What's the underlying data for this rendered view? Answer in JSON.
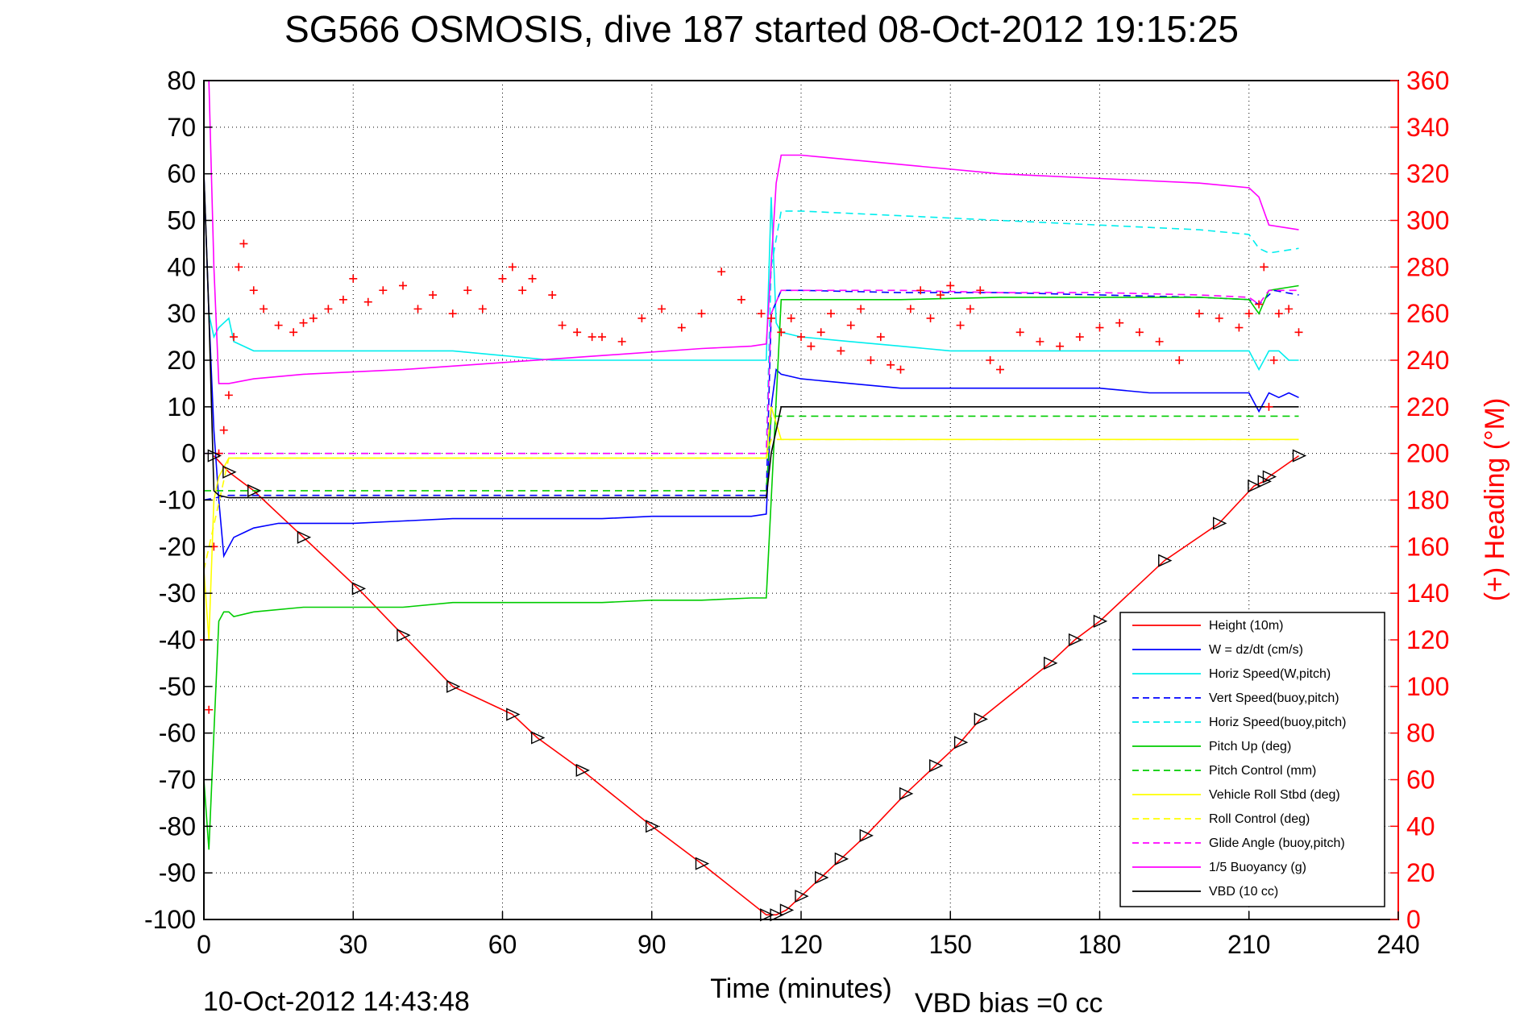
{
  "chart_data": {
    "type": "line",
    "title": "SG566 OSMOSIS, dive 187 started 08-Oct-2012 19:15:25",
    "xlabel": "Time (minutes)",
    "ylabel": "",
    "y2label": "(+) Heading (°M)",
    "footer_left": "10-Oct-2012 14:43:48",
    "footer_right": "VBD bias =0 cc",
    "xlim": [
      0,
      240
    ],
    "ylim": [
      -100,
      80
    ],
    "y2lim": [
      0,
      360
    ],
    "xticks": [
      "0",
      "30",
      "60",
      "90",
      "120",
      "150",
      "180",
      "210",
      "240"
    ],
    "xtick_values": [
      0,
      30,
      60,
      90,
      120,
      150,
      180,
      210,
      240
    ],
    "yticks": [
      "80",
      "70",
      "60",
      "50",
      "40",
      "30",
      "20",
      "10",
      "0",
      "-10",
      "-20",
      "-30",
      "-40",
      "-50",
      "-60",
      "-70",
      "-80",
      "-90",
      "-100"
    ],
    "ytick_values": [
      80,
      70,
      60,
      50,
      40,
      30,
      20,
      10,
      0,
      -10,
      -20,
      -30,
      -40,
      -50,
      -60,
      -70,
      -80,
      -90,
      -100
    ],
    "y2ticks": [
      "360",
      "340",
      "320",
      "300",
      "280",
      "260",
      "240",
      "220",
      "200",
      "180",
      "160",
      "140",
      "120",
      "100",
      "80",
      "60",
      "40",
      "20",
      "0"
    ],
    "y2tick_values": [
      360,
      340,
      320,
      300,
      280,
      260,
      240,
      220,
      200,
      180,
      160,
      140,
      120,
      100,
      80,
      60,
      40,
      20,
      0
    ],
    "grid": true,
    "legend_position": "bottom-right",
    "series": [
      {
        "name": "Height (10m)",
        "color": "#ff0000",
        "style": "solid",
        "x": [
          2,
          5,
          10,
          20,
          31,
          40,
          50,
          62,
          67,
          76,
          90,
          100,
          113,
          115,
          117,
          120,
          124,
          128,
          133,
          141,
          147,
          152,
          156,
          170,
          175,
          180,
          193,
          204,
          211,
          213,
          214,
          220
        ],
        "y": [
          -0.5,
          -4,
          -8,
          -18,
          -29,
          -39,
          -50,
          -56,
          -61,
          -68,
          -80,
          -88,
          -99,
          -99,
          -98,
          -95,
          -91,
          -87,
          -82,
          -73,
          -67,
          -62,
          -57,
          -45,
          -40,
          -36,
          -23,
          -15,
          -7,
          -6,
          -5,
          -0.5
        ]
      },
      {
        "name": "W = dz/dt (cm/s)",
        "color": "#0000ff",
        "style": "solid",
        "x": [
          0,
          1,
          2,
          3,
          4,
          5,
          6,
          8,
          10,
          15,
          20,
          30,
          40,
          50,
          60,
          70,
          80,
          90,
          100,
          110,
          113,
          114,
          115,
          116,
          120,
          130,
          140,
          150,
          160,
          170,
          180,
          190,
          200,
          210,
          212,
          214,
          216,
          218,
          220
        ],
        "y": [
          60,
          30,
          5,
          -10,
          -22,
          -20,
          -18,
          -17,
          -16,
          -15,
          -15,
          -15,
          -14.5,
          -14,
          -14,
          -14,
          -14,
          -13.5,
          -13.5,
          -13.5,
          -13,
          10,
          18,
          17,
          16,
          15,
          14,
          14,
          14,
          14,
          14,
          13,
          13,
          13,
          9,
          13,
          12,
          13,
          12
        ]
      },
      {
        "name": "Horiz Speed(W,pitch)",
        "color": "#00eeee",
        "style": "solid",
        "x": [
          1,
          2,
          3,
          4,
          5,
          6,
          8,
          10,
          15,
          20,
          30,
          40,
          50,
          60,
          70,
          80,
          90,
          100,
          110,
          113,
          114,
          115,
          116,
          120,
          130,
          140,
          150,
          160,
          170,
          180,
          190,
          200,
          210,
          212,
          214,
          216,
          218,
          220
        ],
        "y": [
          30,
          25,
          27,
          28,
          29,
          24,
          23,
          22,
          22,
          22,
          22,
          22,
          22,
          21,
          20,
          20,
          20,
          20,
          20,
          20,
          55,
          28,
          26,
          25,
          24,
          23,
          22,
          22,
          22,
          22,
          22,
          22,
          22,
          18,
          22,
          22,
          20,
          20
        ]
      },
      {
        "name": "Vert Speed(buoy,pitch)",
        "color": "#0000ff",
        "style": "dashed",
        "x": [
          0,
          5,
          113,
          114,
          116,
          120,
          140,
          160,
          180,
          200,
          210,
          212,
          215,
          220
        ],
        "y": [
          -10,
          -9,
          -9,
          30,
          35,
          35,
          34.5,
          34.5,
          34,
          33.5,
          33,
          32,
          35,
          34
        ]
      },
      {
        "name": "Horiz Speed(buoy,pitch)",
        "color": "#00eeee",
        "style": "dashed",
        "x": [
          0,
          5,
          113,
          114,
          116,
          120,
          140,
          160,
          180,
          200,
          210,
          212,
          214,
          220
        ],
        "y": [
          0,
          0,
          0,
          40,
          52,
          52,
          51,
          50,
          49,
          48,
          47,
          44,
          43,
          44
        ]
      },
      {
        "name": "Pitch Up (deg)",
        "color": "#00cc00",
        "style": "solid",
        "x": [
          0,
          1,
          2,
          3,
          4,
          5,
          6,
          10,
          20,
          30,
          40,
          50,
          60,
          70,
          80,
          90,
          100,
          110,
          113,
          114,
          116,
          120,
          140,
          160,
          180,
          200,
          210,
          212,
          214,
          220
        ],
        "y": [
          -70,
          -85,
          -60,
          -36,
          -34,
          -34,
          -35,
          -34,
          -33,
          -33,
          -33,
          -32,
          -32,
          -32,
          -32,
          -31.5,
          -31.5,
          -31,
          -31,
          -10,
          33,
          33,
          33,
          33.5,
          33.5,
          33.5,
          33,
          30,
          35,
          36
        ]
      },
      {
        "name": "Pitch Control (mm)",
        "color": "#00cc00",
        "style": "dashed",
        "x": [
          0,
          5,
          113,
          114,
          116,
          220
        ],
        "y": [
          -8,
          -8,
          -8,
          8,
          8,
          8
        ]
      },
      {
        "name": "Vehicle Roll Stbd (deg)",
        "color": "#ffff00",
        "style": "solid",
        "x": [
          0,
          1,
          2,
          3,
          5,
          8,
          10,
          20,
          30,
          40,
          50,
          60,
          70,
          80,
          90,
          100,
          110,
          113,
          114,
          116,
          120,
          140,
          160,
          180,
          200,
          210,
          212,
          214,
          220
        ],
        "y": [
          -25,
          -40,
          -10,
          -5,
          -1,
          -1,
          -1,
          -1,
          -1,
          -1,
          -1,
          -1,
          -1,
          -1,
          -1,
          -1,
          -1,
          -1,
          10,
          3,
          3,
          3,
          3,
          3,
          3,
          3,
          3,
          3,
          3
        ]
      },
      {
        "name": "Roll Control (deg)",
        "color": "#ffff00",
        "style": "dashed",
        "x": [
          0,
          5,
          113,
          114,
          116,
          220
        ],
        "y": [
          -25,
          -1,
          -1,
          3,
          3,
          3
        ]
      },
      {
        "name": "Glide Angle (buoy,pitch)",
        "color": "#ff00ff",
        "style": "dashed",
        "x": [
          0,
          5,
          113,
          114,
          116,
          120,
          140,
          160,
          180,
          200,
          210,
          212,
          214,
          220
        ],
        "y": [
          0,
          0,
          0,
          30,
          35,
          35,
          35,
          34.5,
          34.5,
          34,
          33.5,
          32,
          35,
          35
        ]
      },
      {
        "name": "1/5 Buoyancy (g)",
        "color": "#ff00ff",
        "style": "solid",
        "x": [
          1,
          2,
          3,
          5,
          10,
          20,
          40,
          60,
          80,
          100,
          110,
          113,
          115,
          116,
          120,
          140,
          160,
          180,
          200,
          210,
          212,
          214,
          220
        ],
        "y": [
          80,
          40,
          15,
          15,
          16,
          17,
          18,
          19.5,
          21,
          22.5,
          23,
          23.5,
          58,
          64,
          64,
          62,
          60,
          59,
          58,
          57,
          55,
          49,
          48
        ]
      },
      {
        "name": "VBD (10 cc)",
        "color": "#000000",
        "style": "solid",
        "x": [
          0,
          1,
          2,
          3,
          5,
          10,
          20,
          40,
          60,
          80,
          100,
          113,
          114,
          116,
          120,
          140,
          160,
          180,
          200,
          220
        ],
        "y": [
          60,
          30,
          -8,
          -9,
          -9.5,
          -9.5,
          -9.5,
          -9.5,
          -9.5,
          -9.5,
          -9.5,
          -9.5,
          0,
          10,
          10,
          10,
          10,
          10,
          10,
          10
        ]
      }
    ],
    "heading_series": {
      "name": "(+) Heading (°M)",
      "color": "#ff0000",
      "marker": "+",
      "axis": "right",
      "x": [
        0,
        1,
        2,
        3,
        4,
        5,
        6,
        7,
        8,
        10,
        12,
        15,
        18,
        20,
        22,
        25,
        28,
        30,
        33,
        36,
        40,
        43,
        46,
        50,
        53,
        56,
        60,
        62,
        64,
        66,
        70,
        72,
        75,
        78,
        80,
        84,
        88,
        92,
        96,
        100,
        104,
        108,
        112,
        114,
        116,
        118,
        120,
        122,
        124,
        126,
        128,
        130,
        132,
        134,
        136,
        138,
        140,
        142,
        144,
        146,
        148,
        150,
        152,
        154,
        156,
        158,
        160,
        164,
        168,
        172,
        176,
        180,
        184,
        188,
        192,
        196,
        200,
        204,
        208,
        210,
        212,
        213,
        214,
        215,
        216,
        218,
        220
      ],
      "y": [
        120,
        90,
        160,
        200,
        210,
        225,
        250,
        280,
        290,
        270,
        262,
        255,
        252,
        256,
        258,
        262,
        266,
        275,
        265,
        270,
        272,
        262,
        268,
        260,
        270,
        262,
        275,
        280,
        270,
        275,
        268,
        255,
        252,
        250,
        250,
        248,
        258,
        262,
        254,
        260,
        278,
        266,
        260,
        258,
        252,
        258,
        250,
        246,
        252,
        260,
        244,
        255,
        262,
        240,
        250,
        238,
        236,
        262,
        270,
        258,
        268,
        272,
        255,
        262,
        270,
        240,
        236,
        252,
        248,
        246,
        250,
        254,
        256,
        252,
        248,
        240,
        260,
        258,
        254,
        260,
        264,
        280,
        220,
        240,
        260,
        262,
        252
      ]
    }
  },
  "legend_entries": [
    {
      "label": "Height (10m)",
      "color": "#ff0000",
      "style": "solid"
    },
    {
      "label": "W = dz/dt (cm/s)",
      "color": "#0000ff",
      "style": "solid"
    },
    {
      "label": "Horiz Speed(W,pitch)",
      "color": "#00eeee",
      "style": "solid"
    },
    {
      "label": "Vert Speed(buoy,pitch)",
      "color": "#0000ff",
      "style": "dashed"
    },
    {
      "label": "Horiz Speed(buoy,pitch)",
      "color": "#00eeee",
      "style": "dashed"
    },
    {
      "label": "Pitch Up (deg)",
      "color": "#00cc00",
      "style": "solid"
    },
    {
      "label": "Pitch Control (mm)",
      "color": "#00cc00",
      "style": "dashed"
    },
    {
      "label": "Vehicle Roll Stbd (deg)",
      "color": "#ffff00",
      "style": "solid"
    },
    {
      "label": "Roll Control (deg)",
      "color": "#ffff00",
      "style": "dashed"
    },
    {
      "label": "Glide Angle (buoy,pitch)",
      "color": "#ff00ff",
      "style": "dashed"
    },
    {
      "label": "1/5 Buoyancy (g)",
      "color": "#ff00ff",
      "style": "solid"
    },
    {
      "label": "VBD (10 cc)",
      "color": "#000000",
      "style": "solid"
    }
  ]
}
